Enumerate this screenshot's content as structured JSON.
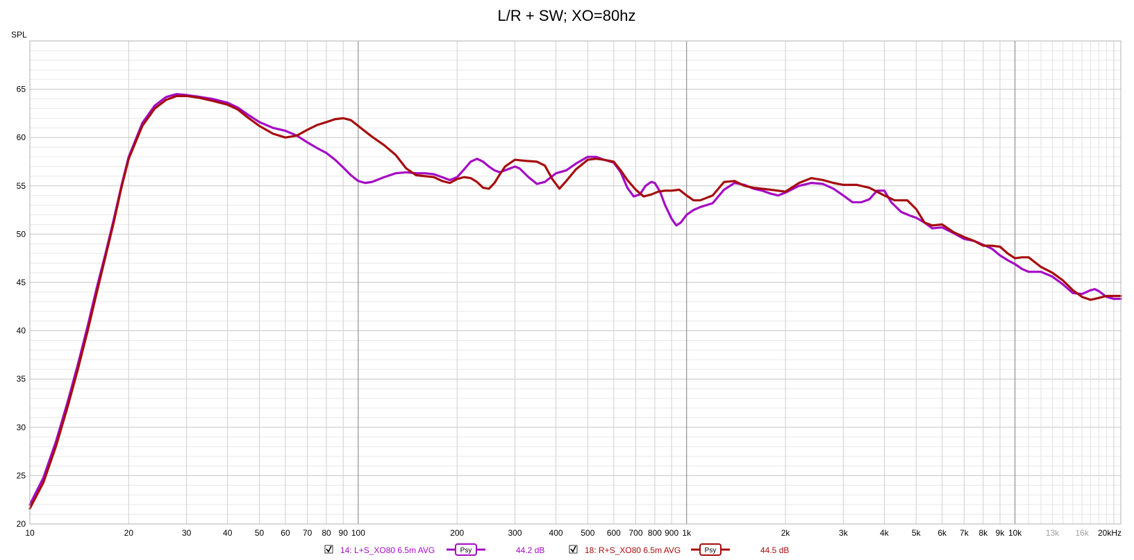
{
  "chart_data": {
    "type": "line",
    "title": "L/R + SW; XO=80hz",
    "ylabel": "SPL",
    "xscale": "log",
    "xlim": [
      10,
      21000
    ],
    "ylim": [
      20,
      70
    ],
    "grid": true,
    "y_ticks": [
      20,
      25,
      30,
      35,
      40,
      45,
      50,
      55,
      60,
      65
    ],
    "y_tick_labels": [
      "20",
      "25",
      "30",
      "35",
      "40",
      "45",
      "50",
      "55",
      "60",
      "65"
    ],
    "x_ticks": [
      {
        "value": 10,
        "label": "10"
      },
      {
        "value": 20,
        "label": "20"
      },
      {
        "value": 30,
        "label": "30"
      },
      {
        "value": 40,
        "label": "40"
      },
      {
        "value": 50,
        "label": "50"
      },
      {
        "value": 60,
        "label": "60"
      },
      {
        "value": 70,
        "label": "70"
      },
      {
        "value": 80,
        "label": "80"
      },
      {
        "value": 90,
        "label": "90"
      },
      {
        "value": 100,
        "label": "100"
      },
      {
        "value": 200,
        "label": "200"
      },
      {
        "value": 300,
        "label": "300"
      },
      {
        "value": 400,
        "label": "400"
      },
      {
        "value": 500,
        "label": "500"
      },
      {
        "value": 600,
        "label": "600"
      },
      {
        "value": 700,
        "label": "700"
      },
      {
        "value": 800,
        "label": "800"
      },
      {
        "value": 900,
        "label": "900"
      },
      {
        "value": 1000,
        "label": "1k"
      },
      {
        "value": 2000,
        "label": "2k"
      },
      {
        "value": 3000,
        "label": "3k"
      },
      {
        "value": 4000,
        "label": "4k"
      },
      {
        "value": 5000,
        "label": "5k"
      },
      {
        "value": 6000,
        "label": "6k"
      },
      {
        "value": 7000,
        "label": "7k"
      },
      {
        "value": 8000,
        "label": "8k"
      },
      {
        "value": 9000,
        "label": "9k"
      },
      {
        "value": 10000,
        "label": "10k"
      },
      {
        "value": 13000,
        "label": "13k",
        "faint": true
      },
      {
        "value": 16000,
        "label": "16k",
        "faint": true
      },
      {
        "value": 20000,
        "label": "20kHz"
      }
    ],
    "series": [
      {
        "name": "14: L+S_XO80 6.5m AVG",
        "color": "#a40bc4",
        "smoothing_badge": "Psy",
        "level": "44.2 dB",
        "checked": true,
        "points": [
          [
            10,
            22.0
          ],
          [
            11,
            24.8
          ],
          [
            12,
            28.5
          ],
          [
            13,
            32.5
          ],
          [
            14,
            36.5
          ],
          [
            15,
            40.5
          ],
          [
            16,
            44.5
          ],
          [
            17,
            48.0
          ],
          [
            18,
            51.5
          ],
          [
            19,
            55.0
          ],
          [
            20,
            58.0
          ],
          [
            22,
            61.5
          ],
          [
            24,
            63.3
          ],
          [
            26,
            64.2
          ],
          [
            28,
            64.5
          ],
          [
            30,
            64.4
          ],
          [
            33,
            64.2
          ],
          [
            36,
            64.0
          ],
          [
            40,
            63.6
          ],
          [
            43,
            63.1
          ],
          [
            46,
            62.4
          ],
          [
            50,
            61.6
          ],
          [
            55,
            61.0
          ],
          [
            60,
            60.7
          ],
          [
            65,
            60.2
          ],
          [
            70,
            59.5
          ],
          [
            75,
            58.9
          ],
          [
            80,
            58.4
          ],
          [
            85,
            57.7
          ],
          [
            90,
            56.9
          ],
          [
            95,
            56.1
          ],
          [
            100,
            55.5
          ],
          [
            105,
            55.3
          ],
          [
            110,
            55.4
          ],
          [
            120,
            55.9
          ],
          [
            130,
            56.3
          ],
          [
            140,
            56.4
          ],
          [
            150,
            56.3
          ],
          [
            160,
            56.3
          ],
          [
            170,
            56.2
          ],
          [
            180,
            55.9
          ],
          [
            190,
            55.6
          ],
          [
            200,
            55.9
          ],
          [
            210,
            56.7
          ],
          [
            220,
            57.5
          ],
          [
            230,
            57.8
          ],
          [
            240,
            57.5
          ],
          [
            250,
            57.0
          ],
          [
            260,
            56.6
          ],
          [
            270,
            56.4
          ],
          [
            280,
            56.6
          ],
          [
            300,
            57.0
          ],
          [
            310,
            56.8
          ],
          [
            330,
            55.9
          ],
          [
            350,
            55.2
          ],
          [
            370,
            55.4
          ],
          [
            400,
            56.3
          ],
          [
            430,
            56.6
          ],
          [
            460,
            57.3
          ],
          [
            500,
            58.0
          ],
          [
            530,
            58.0
          ],
          [
            560,
            57.7
          ],
          [
            600,
            57.4
          ],
          [
            630,
            56.4
          ],
          [
            660,
            54.8
          ],
          [
            690,
            53.9
          ],
          [
            720,
            54.1
          ],
          [
            750,
            55.0
          ],
          [
            780,
            55.4
          ],
          [
            800,
            55.3
          ],
          [
            830,
            54.4
          ],
          [
            860,
            53.0
          ],
          [
            900,
            51.6
          ],
          [
            930,
            50.9
          ],
          [
            960,
            51.2
          ],
          [
            1000,
            52.0
          ],
          [
            1050,
            52.5
          ],
          [
            1100,
            52.8
          ],
          [
            1200,
            53.2
          ],
          [
            1300,
            54.6
          ],
          [
            1400,
            55.3
          ],
          [
            1500,
            55.1
          ],
          [
            1600,
            54.7
          ],
          [
            1700,
            54.5
          ],
          [
            1800,
            54.2
          ],
          [
            1900,
            54.0
          ],
          [
            2000,
            54.3
          ],
          [
            2200,
            55.0
          ],
          [
            2400,
            55.3
          ],
          [
            2600,
            55.2
          ],
          [
            2800,
            54.7
          ],
          [
            3000,
            54.0
          ],
          [
            3200,
            53.3
          ],
          [
            3400,
            53.3
          ],
          [
            3600,
            53.6
          ],
          [
            3800,
            54.5
          ],
          [
            4000,
            54.5
          ],
          [
            4200,
            53.3
          ],
          [
            4500,
            52.3
          ],
          [
            4800,
            51.9
          ],
          [
            5000,
            51.7
          ],
          [
            5300,
            51.2
          ],
          [
            5600,
            50.6
          ],
          [
            6000,
            50.7
          ],
          [
            6500,
            50.1
          ],
          [
            7000,
            49.5
          ],
          [
            7500,
            49.3
          ],
          [
            8000,
            48.9
          ],
          [
            8500,
            48.5
          ],
          [
            9000,
            47.8
          ],
          [
            9500,
            47.3
          ],
          [
            10000,
            46.9
          ],
          [
            10500,
            46.4
          ],
          [
            11000,
            46.1
          ],
          [
            12000,
            46.1
          ],
          [
            13000,
            45.6
          ],
          [
            14000,
            44.8
          ],
          [
            15000,
            43.9
          ],
          [
            16000,
            43.8
          ],
          [
            17000,
            44.2
          ],
          [
            17500,
            44.3
          ],
          [
            18000,
            44.1
          ],
          [
            19000,
            43.5
          ],
          [
            20000,
            43.3
          ],
          [
            21000,
            43.3
          ]
        ]
      },
      {
        "name": "18: R+S_XO80 6.5m AVG",
        "color": "#a60d0d",
        "smoothing_badge": "Psy",
        "level": "44.5 dB",
        "checked": true,
        "points": [
          [
            10,
            21.6
          ],
          [
            11,
            24.3
          ],
          [
            12,
            28.0
          ],
          [
            13,
            32.0
          ],
          [
            14,
            36.0
          ],
          [
            15,
            40.0
          ],
          [
            16,
            44.0
          ],
          [
            17,
            47.7
          ],
          [
            18,
            51.2
          ],
          [
            19,
            54.8
          ],
          [
            20,
            57.8
          ],
          [
            22,
            61.2
          ],
          [
            24,
            63.0
          ],
          [
            26,
            63.9
          ],
          [
            28,
            64.3
          ],
          [
            30,
            64.3
          ],
          [
            33,
            64.1
          ],
          [
            36,
            63.8
          ],
          [
            40,
            63.4
          ],
          [
            43,
            62.9
          ],
          [
            46,
            62.1
          ],
          [
            50,
            61.2
          ],
          [
            55,
            60.4
          ],
          [
            60,
            60.0
          ],
          [
            65,
            60.2
          ],
          [
            70,
            60.8
          ],
          [
            75,
            61.3
          ],
          [
            80,
            61.6
          ],
          [
            85,
            61.9
          ],
          [
            90,
            62.0
          ],
          [
            95,
            61.8
          ],
          [
            100,
            61.2
          ],
          [
            110,
            60.1
          ],
          [
            120,
            59.2
          ],
          [
            130,
            58.2
          ],
          [
            140,
            56.8
          ],
          [
            150,
            56.1
          ],
          [
            160,
            56.0
          ],
          [
            170,
            55.9
          ],
          [
            180,
            55.5
          ],
          [
            190,
            55.3
          ],
          [
            200,
            55.7
          ],
          [
            210,
            55.9
          ],
          [
            220,
            55.8
          ],
          [
            230,
            55.4
          ],
          [
            240,
            54.8
          ],
          [
            250,
            54.7
          ],
          [
            260,
            55.3
          ],
          [
            270,
            56.2
          ],
          [
            280,
            57.0
          ],
          [
            300,
            57.7
          ],
          [
            320,
            57.6
          ],
          [
            350,
            57.5
          ],
          [
            370,
            57.1
          ],
          [
            390,
            55.7
          ],
          [
            410,
            54.7
          ],
          [
            430,
            55.5
          ],
          [
            460,
            56.7
          ],
          [
            500,
            57.7
          ],
          [
            530,
            57.8
          ],
          [
            560,
            57.7
          ],
          [
            600,
            57.5
          ],
          [
            630,
            56.6
          ],
          [
            660,
            55.6
          ],
          [
            700,
            54.6
          ],
          [
            740,
            53.9
          ],
          [
            780,
            54.1
          ],
          [
            820,
            54.4
          ],
          [
            860,
            54.5
          ],
          [
            900,
            54.5
          ],
          [
            950,
            54.6
          ],
          [
            1000,
            54.0
          ],
          [
            1050,
            53.5
          ],
          [
            1100,
            53.5
          ],
          [
            1200,
            54.0
          ],
          [
            1300,
            55.4
          ],
          [
            1400,
            55.5
          ],
          [
            1500,
            55.0
          ],
          [
            1600,
            54.8
          ],
          [
            1800,
            54.6
          ],
          [
            2000,
            54.4
          ],
          [
            2200,
            55.3
          ],
          [
            2400,
            55.8
          ],
          [
            2600,
            55.6
          ],
          [
            2800,
            55.3
          ],
          [
            3000,
            55.1
          ],
          [
            3300,
            55.1
          ],
          [
            3600,
            54.8
          ],
          [
            4000,
            54.0
          ],
          [
            4300,
            53.5
          ],
          [
            4700,
            53.5
          ],
          [
            5000,
            52.6
          ],
          [
            5300,
            51.2
          ],
          [
            5600,
            50.9
          ],
          [
            6000,
            51.0
          ],
          [
            6500,
            50.2
          ],
          [
            7000,
            49.7
          ],
          [
            7500,
            49.3
          ],
          [
            8000,
            48.8
          ],
          [
            8500,
            48.8
          ],
          [
            9000,
            48.7
          ],
          [
            9500,
            48.0
          ],
          [
            10000,
            47.5
          ],
          [
            10500,
            47.6
          ],
          [
            11000,
            47.6
          ],
          [
            12000,
            46.6
          ],
          [
            13000,
            46.0
          ],
          [
            14000,
            45.2
          ],
          [
            15000,
            44.2
          ],
          [
            16000,
            43.5
          ],
          [
            17000,
            43.2
          ],
          [
            18000,
            43.4
          ],
          [
            19000,
            43.6
          ],
          [
            20000,
            43.6
          ],
          [
            21000,
            43.6
          ]
        ]
      }
    ]
  }
}
